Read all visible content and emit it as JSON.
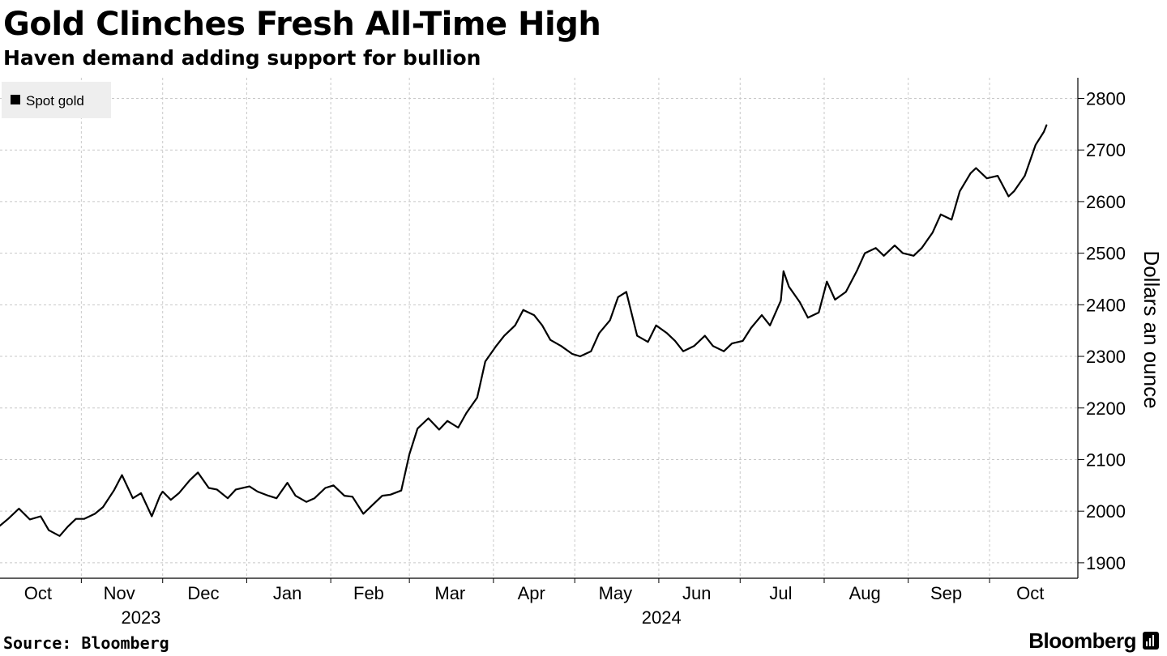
{
  "header": {
    "title": "Gold Clinches Fresh All-Time High",
    "subtitle": "Haven demand adding support for bullion"
  },
  "footer": {
    "source": "Source: Bloomberg",
    "brand": "Bloomberg",
    "brand_icon": "bloomberg-chart-icon"
  },
  "colors": {
    "line": "#000000",
    "grid": "#c8c8c8",
    "legend_bg": "#eeeeee"
  },
  "chart_data": {
    "type": "line",
    "title": "Gold Clinches Fresh All-Time High",
    "subtitle": "Haven demand adding support for bullion",
    "ylabel": "Dollars an ounce",
    "xlabel": "",
    "ylim": [
      1870,
      2840
    ],
    "xlim": [
      "2023-10-02",
      "2024-10-24"
    ],
    "y_ticks": [
      1900,
      2000,
      2100,
      2200,
      2300,
      2400,
      2500,
      2600,
      2700,
      2800
    ],
    "y_axis_side": "right",
    "grid": true,
    "legend_position": "top-left",
    "x_ticks": [
      {
        "label": "Oct",
        "date": "2023-10-16"
      },
      {
        "label": "Nov",
        "date": "2023-11-15"
      },
      {
        "label": "Dec",
        "date": "2023-12-16"
      },
      {
        "label": "Jan",
        "date": "2024-01-16"
      },
      {
        "label": "Feb",
        "date": "2024-02-15"
      },
      {
        "label": "Mar",
        "date": "2024-03-16"
      },
      {
        "label": "Apr",
        "date": "2024-04-15"
      },
      {
        "label": "May",
        "date": "2024-05-16"
      },
      {
        "label": "Jun",
        "date": "2024-06-15"
      },
      {
        "label": "Jul",
        "date": "2024-07-16"
      },
      {
        "label": "Aug",
        "date": "2024-08-16"
      },
      {
        "label": "Sep",
        "date": "2024-09-15"
      },
      {
        "label": "Oct",
        "date": "2024-10-16"
      }
    ],
    "month_boundaries": [
      "2023-11-01",
      "2023-12-01",
      "2024-01-01",
      "2024-02-01",
      "2024-03-01",
      "2024-04-01",
      "2024-05-01",
      "2024-06-01",
      "2024-07-01",
      "2024-08-01",
      "2024-09-01",
      "2024-10-01"
    ],
    "year_labels": [
      {
        "label": "2023",
        "date": "2023-11-23"
      },
      {
        "label": "2024",
        "date": "2024-06-02"
      }
    ],
    "series": [
      {
        "name": "Spot gold",
        "x": [
          "2023-10-02",
          "2023-10-05",
          "2023-10-09",
          "2023-10-13",
          "2023-10-17",
          "2023-10-20",
          "2023-10-24",
          "2023-10-27",
          "2023-10-30",
          "2023-11-02",
          "2023-11-06",
          "2023-11-09",
          "2023-11-13",
          "2023-11-16",
          "2023-11-20",
          "2023-11-23",
          "2023-11-27",
          "2023-11-30",
          "2023-12-01",
          "2023-12-04",
          "2023-12-07",
          "2023-12-11",
          "2023-12-14",
          "2023-12-18",
          "2023-12-21",
          "2023-12-25",
          "2023-12-28",
          "2024-01-02",
          "2024-01-05",
          "2024-01-09",
          "2024-01-12",
          "2024-01-16",
          "2024-01-19",
          "2024-01-23",
          "2024-01-26",
          "2024-01-30",
          "2024-02-02",
          "2024-02-06",
          "2024-02-09",
          "2024-02-13",
          "2024-02-16",
          "2024-02-20",
          "2024-02-23",
          "2024-02-27",
          "2024-03-01",
          "2024-03-04",
          "2024-03-08",
          "2024-03-12",
          "2024-03-15",
          "2024-03-19",
          "2024-03-22",
          "2024-03-26",
          "2024-03-29",
          "2024-04-02",
          "2024-04-05",
          "2024-04-09",
          "2024-04-12",
          "2024-04-16",
          "2024-04-19",
          "2024-04-22",
          "2024-04-26",
          "2024-04-30",
          "2024-05-03",
          "2024-05-07",
          "2024-05-10",
          "2024-05-14",
          "2024-05-17",
          "2024-05-20",
          "2024-05-24",
          "2024-05-28",
          "2024-05-31",
          "2024-06-04",
          "2024-06-07",
          "2024-06-10",
          "2024-06-14",
          "2024-06-18",
          "2024-06-21",
          "2024-06-25",
          "2024-06-28",
          "2024-07-02",
          "2024-07-05",
          "2024-07-09",
          "2024-07-12",
          "2024-07-16",
          "2024-07-17",
          "2024-07-19",
          "2024-07-23",
          "2024-07-26",
          "2024-07-30",
          "2024-08-02",
          "2024-08-05",
          "2024-08-09",
          "2024-08-13",
          "2024-08-16",
          "2024-08-20",
          "2024-08-23",
          "2024-08-27",
          "2024-08-30",
          "2024-09-03",
          "2024-09-06",
          "2024-09-10",
          "2024-09-13",
          "2024-09-17",
          "2024-09-20",
          "2024-09-24",
          "2024-09-26",
          "2024-09-30",
          "2024-10-04",
          "2024-10-08",
          "2024-10-10",
          "2024-10-14",
          "2024-10-18",
          "2024-10-21",
          "2024-10-22"
        ],
        "y": [
          1972,
          1985,
          2005,
          1984,
          1990,
          1963,
          1952,
          1970,
          1985,
          1985,
          1995,
          2008,
          2040,
          2070,
          2025,
          2035,
          1990,
          2030,
          2038,
          2022,
          2035,
          2060,
          2075,
          2045,
          2042,
          2025,
          2042,
          2048,
          2038,
          2030,
          2025,
          2055,
          2030,
          2018,
          2025,
          2045,
          2050,
          2030,
          2028,
          1995,
          2010,
          2030,
          2032,
          2040,
          2110,
          2160,
          2180,
          2158,
          2175,
          2162,
          2190,
          2220,
          2290,
          2320,
          2340,
          2360,
          2390,
          2380,
          2360,
          2332,
          2320,
          2305,
          2300,
          2310,
          2345,
          2370,
          2415,
          2425,
          2340,
          2328,
          2360,
          2345,
          2330,
          2310,
          2320,
          2340,
          2320,
          2310,
          2325,
          2330,
          2355,
          2380,
          2360,
          2408,
          2465,
          2435,
          2405,
          2375,
          2385,
          2445,
          2410,
          2425,
          2465,
          2500,
          2510,
          2495,
          2515,
          2500,
          2495,
          2510,
          2540,
          2575,
          2565,
          2620,
          2655,
          2665,
          2645,
          2650,
          2610,
          2620,
          2650,
          2710,
          2735,
          2748
        ]
      }
    ]
  }
}
